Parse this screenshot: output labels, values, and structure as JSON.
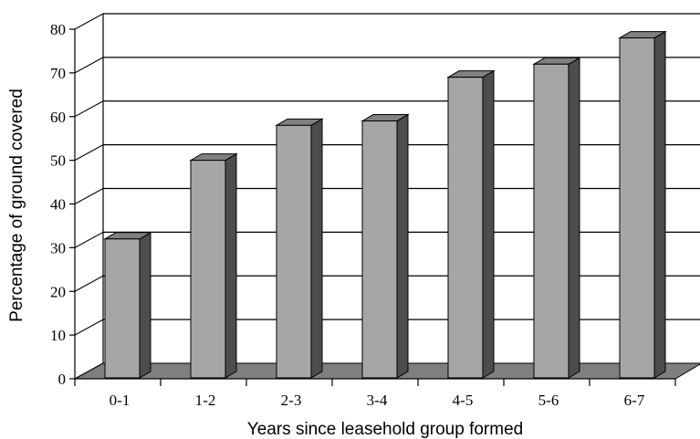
{
  "chart_data": {
    "type": "bar",
    "title": "",
    "xlabel": "Years since leasehold group formed",
    "ylabel": "Percentage of ground covered",
    "categories": [
      "0-1",
      "1-2",
      "2-3",
      "3-4",
      "4-5",
      "5-6",
      "6-7"
    ],
    "values": [
      32,
      50,
      58,
      59,
      69,
      72,
      78
    ],
    "ylim": [
      0,
      80
    ],
    "yticks": [
      "0",
      "10",
      "20",
      "30",
      "40",
      "50",
      "60",
      "70",
      "80"
    ],
    "grid": true,
    "legend": "none",
    "style": "3d",
    "colors": {
      "bar_front": "#a6a6a6",
      "bar_top": "#808080",
      "bar_side": "#4d4d4d",
      "floor": "#7f7f7f",
      "grid": "#000000"
    }
  }
}
